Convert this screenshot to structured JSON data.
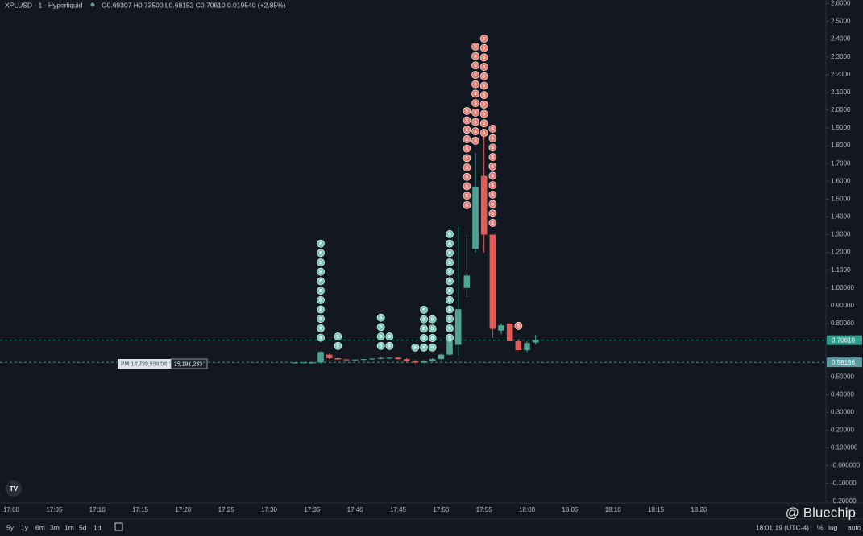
{
  "header": {
    "symbol": "XPLUSD · 1 · Hyperliquid",
    "ohlc": "O0.69307 H0.73500 L0.68152 C0.70610 0.019540 (+2.85%)"
  },
  "chart_data": {
    "type": "candlestick",
    "x": [
      "17:33",
      "17:34",
      "17:35",
      "17:36",
      "17:37",
      "17:38",
      "17:39",
      "17:40",
      "17:41",
      "17:42",
      "17:43",
      "17:44",
      "17:45",
      "17:46",
      "17:47",
      "17:48",
      "17:49",
      "17:50",
      "17:51",
      "17:52",
      "17:53",
      "17:54",
      "17:55",
      "17:56",
      "17:57",
      "17:58",
      "17:59",
      "18:00",
      "18:01"
    ],
    "open": [
      0.58,
      0.58,
      0.58,
      0.58,
      0.625,
      0.605,
      0.598,
      0.595,
      0.597,
      0.6,
      0.603,
      0.606,
      0.608,
      0.6,
      0.59,
      0.58,
      0.59,
      0.6,
      0.625,
      0.68,
      1.0,
      1.22,
      1.63,
      1.3,
      0.76,
      0.8,
      0.7,
      0.65,
      0.69307
    ],
    "high": [
      0.582,
      0.582,
      0.585,
      0.645,
      0.63,
      0.61,
      0.6,
      0.6,
      0.6,
      0.605,
      0.61,
      0.61,
      0.61,
      0.605,
      0.595,
      0.595,
      0.605,
      0.63,
      0.705,
      1.35,
      1.3,
      1.76,
      1.85,
      1.3,
      0.8,
      0.8,
      0.71,
      0.7,
      0.735
    ],
    "low": [
      0.578,
      0.578,
      0.576,
      0.575,
      0.6,
      0.595,
      0.59,
      0.59,
      0.59,
      0.595,
      0.6,
      0.6,
      0.595,
      0.585,
      0.575,
      0.575,
      0.585,
      0.595,
      0.62,
      0.62,
      0.95,
      1.2,
      1.2,
      0.72,
      0.74,
      0.7,
      0.65,
      0.64,
      0.68152
    ],
    "close": [
      0.58,
      0.581,
      0.58,
      0.64,
      0.605,
      0.598,
      0.595,
      0.597,
      0.6,
      0.603,
      0.606,
      0.608,
      0.6,
      0.59,
      0.58,
      0.59,
      0.6,
      0.625,
      0.7,
      0.88,
      1.07,
      1.57,
      1.3,
      0.77,
      0.79,
      0.7,
      0.65,
      0.69,
      0.7061
    ],
    "up_color": "#4fa495",
    "down_color": "#e05c58",
    "ylim": [
      -0.21,
      2.62
    ],
    "yticks": [
      {
        "value": 2.6,
        "label": "2.6000"
      },
      {
        "value": 2.5,
        "label": "2.5000"
      },
      {
        "value": 2.4,
        "label": "2.4000"
      },
      {
        "value": 2.3,
        "label": "2.3000"
      },
      {
        "value": 2.2,
        "label": "2.2000"
      },
      {
        "value": 2.1,
        "label": "2.1000"
      },
      {
        "value": 2.0,
        "label": "2.0000"
      },
      {
        "value": 1.9,
        "label": "1.9000"
      },
      {
        "value": 1.8,
        "label": "1.8000"
      },
      {
        "value": 1.7,
        "label": "1.7000"
      },
      {
        "value": 1.6,
        "label": "1.6000"
      },
      {
        "value": 1.5,
        "label": "1.5000"
      },
      {
        "value": 1.4,
        "label": "1.4000"
      },
      {
        "value": 1.3,
        "label": "1.3000"
      },
      {
        "value": 1.2,
        "label": "1.2000"
      },
      {
        "value": 1.1,
        "label": "1.1000"
      },
      {
        "value": 1.0,
        "label": "1.00000"
      },
      {
        "value": 0.9,
        "label": "0.90000"
      },
      {
        "value": 0.8,
        "label": "0.80000"
      },
      {
        "value": 0.5,
        "label": "0.50000"
      },
      {
        "value": 0.4,
        "label": "0.40000"
      },
      {
        "value": 0.3,
        "label": "0.30000"
      },
      {
        "value": 0.2,
        "label": "0.20000"
      },
      {
        "value": 0.1,
        "label": "0.100000"
      },
      {
        "value": 0,
        "label": "-0.000000"
      },
      {
        "value": -0.1,
        "label": "-0.10000"
      },
      {
        "value": -0.2,
        "label": "-0.20000"
      }
    ],
    "xticks": [
      "17:00",
      "17:05",
      "17:10",
      "17:15",
      "17:20",
      "17:25",
      "17:30",
      "17:35",
      "17:40",
      "17:45",
      "17:50",
      "17:55",
      "18:00",
      "18:05",
      "18:10",
      "18:15",
      "18:20"
    ],
    "price_lines": [
      {
        "value": 0.7061,
        "label": "0.70610",
        "color": "#2f9e8c"
      },
      {
        "value": 0.58166,
        "label": "0.58166",
        "color": "#5b9aa0"
      }
    ],
    "trade_markers": [
      {
        "x": "17:36",
        "side": "B",
        "count": 11,
        "price": 0.72
      },
      {
        "x": "17:38",
        "side": "B",
        "count": 2,
        "price": 0.674
      },
      {
        "x": "17:43",
        "side": "B",
        "count": 4,
        "price": 0.674
      },
      {
        "x": "17:44",
        "side": "B",
        "count": 2,
        "price": 0.674
      },
      {
        "x": "17:47",
        "side": "B",
        "count": 1,
        "price": 0.665
      },
      {
        "x": "17:48",
        "side": "B",
        "count": 5,
        "price": 0.665
      },
      {
        "x": "17:49",
        "side": "B",
        "count": 4,
        "price": 0.665
      },
      {
        "x": "17:51",
        "side": "B",
        "count": 12,
        "price": 0.72
      },
      {
        "x": "17:53",
        "side": "S",
        "count": 11,
        "price": 1.466
      },
      {
        "x": "17:54",
        "side": "S",
        "count": 11,
        "price": 1.828
      },
      {
        "x": "17:55",
        "side": "S",
        "count": 11,
        "price": 1.873
      },
      {
        "x": "17:56",
        "side": "S",
        "count": 11,
        "price": 1.366
      },
      {
        "x": "17:59",
        "side": "S",
        "count": 1,
        "price": 0.787
      }
    ],
    "buy_color": "#74c7b4",
    "sell_color": "#ea7a70"
  },
  "order_label": {
    "left": "PM 14,739,554.04",
    "right": "15,191,233"
  },
  "toolbar": {
    "ranges": [
      "5y",
      "1y",
      "6m",
      "3m",
      "1m",
      "5d",
      "1d"
    ],
    "clock": "18:01:19 (UTC-4)",
    "options": [
      "%",
      "log",
      "auto"
    ]
  },
  "watermark": "@ Bluechip"
}
